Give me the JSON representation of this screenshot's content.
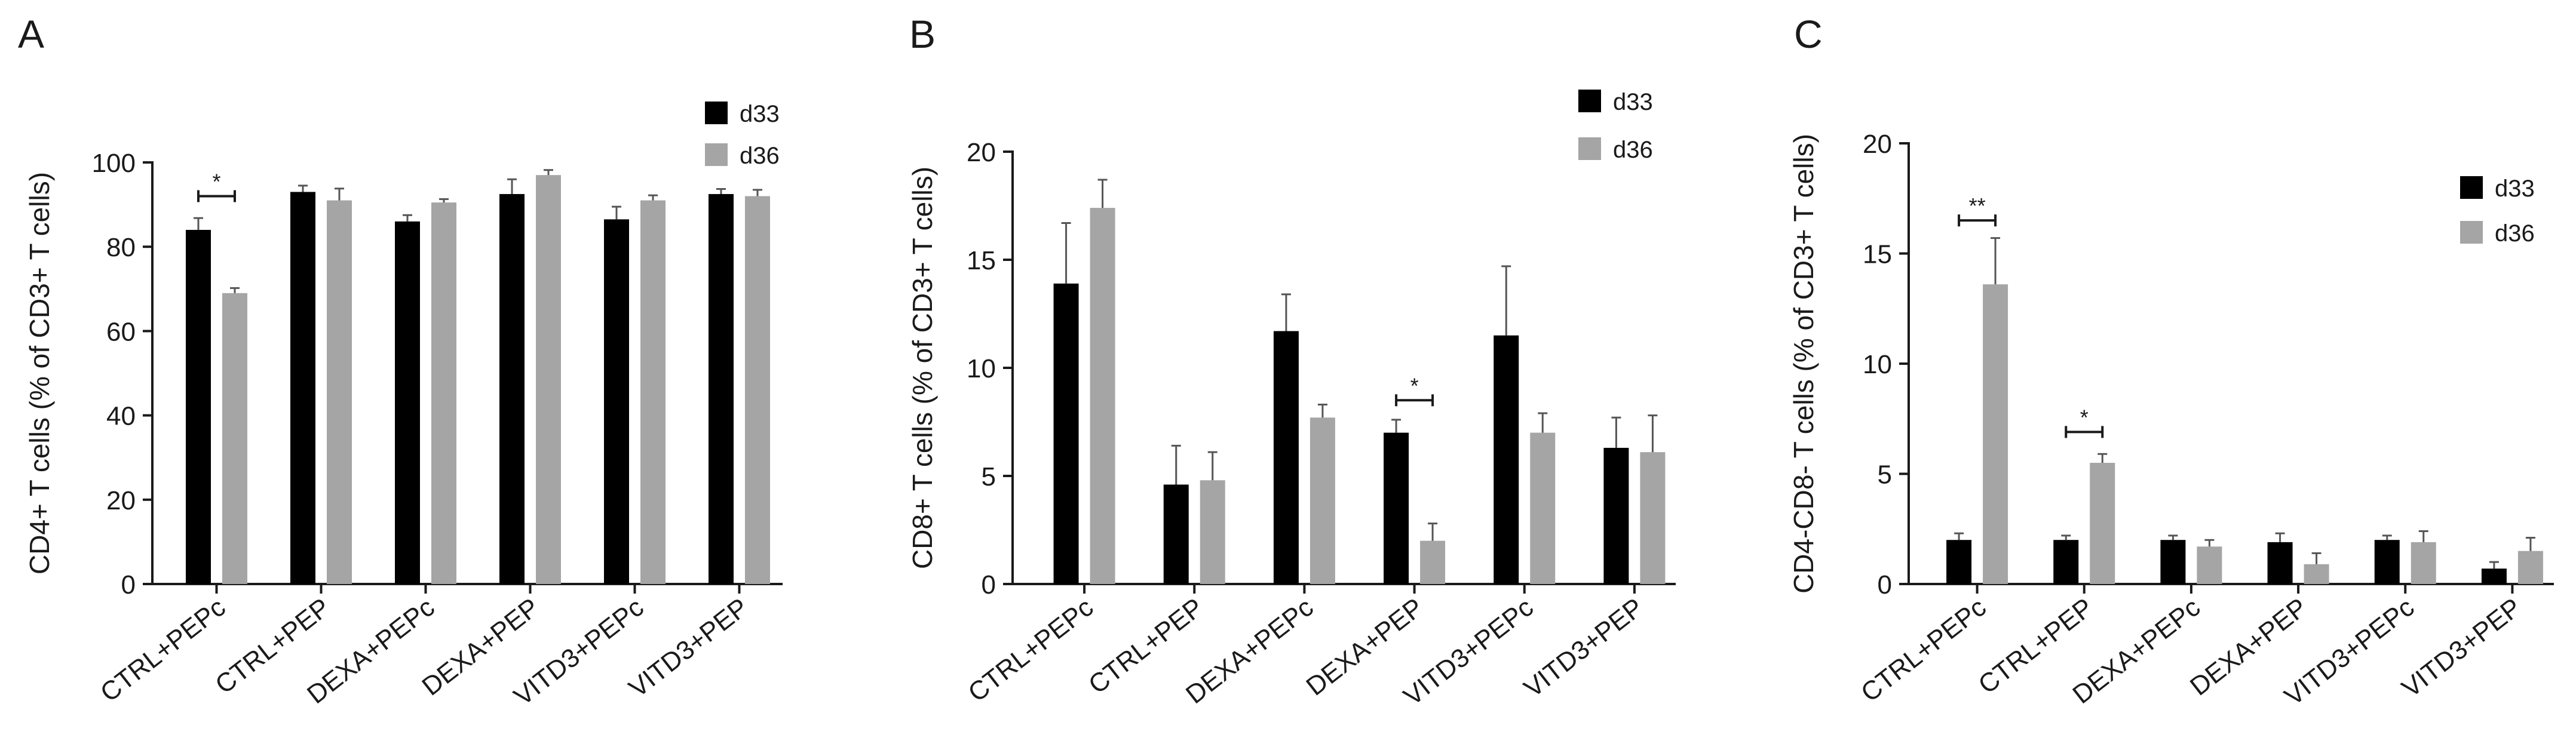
{
  "chart_data": [
    {
      "panel": "A",
      "type": "bar",
      "ylabel": "CD4+ T cells  (% of CD3+ T cells)",
      "ylim": [
        0,
        100
      ],
      "yticks": [
        0,
        20,
        40,
        60,
        80,
        100
      ],
      "categories": [
        "CTRL+PEPc",
        "CTRL+PEP",
        "DEXA+PEPc",
        "DEXA+PEP",
        "VITD3+PEPc",
        "VITD3+PEP"
      ],
      "series": [
        {
          "name": "d33",
          "color": "#000000",
          "values": [
            84,
            93,
            86,
            92.5,
            86.5,
            92.5
          ],
          "errors": [
            2.8,
            1.5,
            1.5,
            3.5,
            3.0,
            1.2
          ]
        },
        {
          "name": "d36",
          "color": "#a5a5a5",
          "values": [
            69,
            91,
            90.5,
            97,
            91,
            92
          ],
          "errors": [
            1.2,
            2.8,
            0.8,
            1.2,
            1.2,
            1.5
          ]
        }
      ],
      "significance": [
        {
          "category": 0,
          "label": "*",
          "value": 92
        }
      ]
    },
    {
      "panel": "B",
      "type": "bar",
      "ylabel": "CD8+ T cells  (% of CD3+ T cells)",
      "ylim": [
        0,
        20
      ],
      "yticks": [
        0,
        5,
        10,
        15,
        20
      ],
      "categories": [
        "CTRL+PEPc",
        "CTRL+PEP",
        "DEXA+PEPc",
        "DEXA+PEP",
        "VITD3+PEPc",
        "VITD3+PEP"
      ],
      "series": [
        {
          "name": "d33",
          "color": "#000000",
          "values": [
            13.9,
            4.6,
            11.7,
            7.0,
            11.5,
            6.3
          ],
          "errors": [
            2.8,
            1.8,
            1.7,
            0.6,
            3.2,
            1.4
          ]
        },
        {
          "name": "d36",
          "color": "#a5a5a5",
          "values": [
            17.4,
            4.8,
            7.7,
            2.0,
            7.0,
            6.1
          ],
          "errors": [
            1.3,
            1.3,
            0.6,
            0.8,
            0.9,
            1.7
          ]
        }
      ],
      "significance": [
        {
          "category": 3,
          "label": "*",
          "value": 8.5
        }
      ]
    },
    {
      "panel": "C",
      "type": "bar",
      "ylabel": "CD4-CD8- T cells  (% of CD3+ T cells)",
      "ylim": [
        0,
        20
      ],
      "yticks": [
        0,
        5,
        10,
        15,
        20
      ],
      "categories": [
        "CTRL+PEPc",
        "CTRL+PEP",
        "DEXA+PEPc",
        "DEXA+PEP",
        "VITD3+PEPc",
        "VITD3+PEP"
      ],
      "series": [
        {
          "name": "d33",
          "color": "#000000",
          "values": [
            2.0,
            2.0,
            2.0,
            1.9,
            2.0,
            0.7
          ],
          "errors": [
            0.3,
            0.2,
            0.2,
            0.4,
            0.2,
            0.3
          ]
        },
        {
          "name": "d36",
          "color": "#a5a5a5",
          "values": [
            13.6,
            5.5,
            1.7,
            0.9,
            1.9,
            1.5
          ],
          "errors": [
            2.1,
            0.4,
            0.3,
            0.5,
            0.5,
            0.6
          ]
        }
      ],
      "significance": [
        {
          "category": 0,
          "label": "**",
          "value": 16.5
        },
        {
          "category": 1,
          "label": "*",
          "value": 6.9
        }
      ]
    }
  ]
}
